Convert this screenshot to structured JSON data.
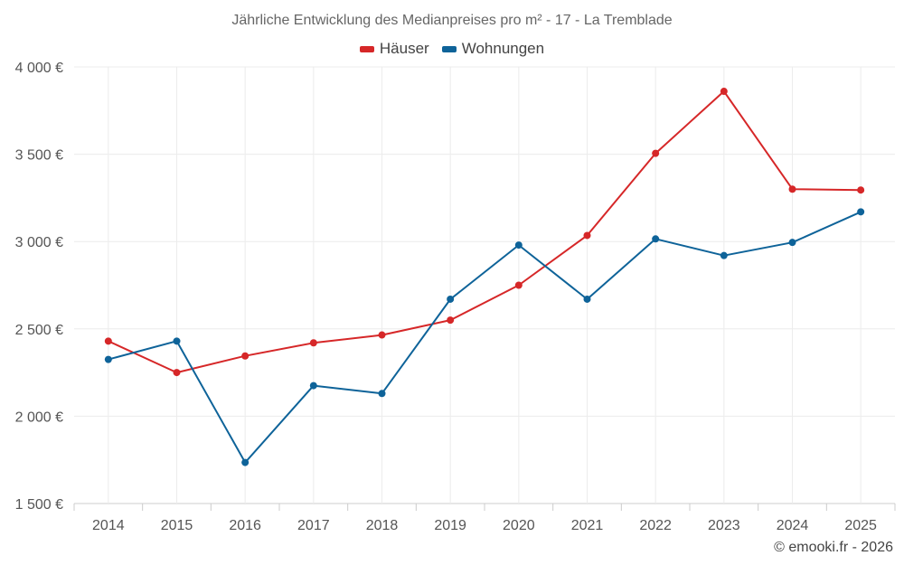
{
  "chart_data": {
    "type": "line",
    "title": "Jährliche Entwicklung des Medianpreises pro m² - 17 - La Tremblade",
    "categories": [
      "2014",
      "2015",
      "2016",
      "2017",
      "2018",
      "2019",
      "2020",
      "2021",
      "2022",
      "2023",
      "2024",
      "2025"
    ],
    "series": [
      {
        "name": "Häuser",
        "color": "#d62728",
        "values": [
          2430,
          2250,
          2345,
          2420,
          2465,
          2550,
          2750,
          3035,
          3505,
          3860,
          3300,
          3295
        ]
      },
      {
        "name": "Wohnungen",
        "color": "#0e6399",
        "values": [
          2325,
          2430,
          1735,
          2175,
          2130,
          2670,
          2980,
          2670,
          3015,
          2920,
          2995,
          3170
        ]
      }
    ],
    "xlabel": "",
    "ylabel": "",
    "ylim": [
      1500,
      4000
    ],
    "yticks": [
      1500,
      2000,
      2500,
      3000,
      3500,
      4000
    ],
    "ytick_labels": [
      "1 500 €",
      "2 000 €",
      "2 500 €",
      "3 000 €",
      "3 500 €",
      "4 000 €"
    ],
    "grid": true,
    "legend_position": "top-center"
  },
  "credit": "© emooki.fr - 2026"
}
